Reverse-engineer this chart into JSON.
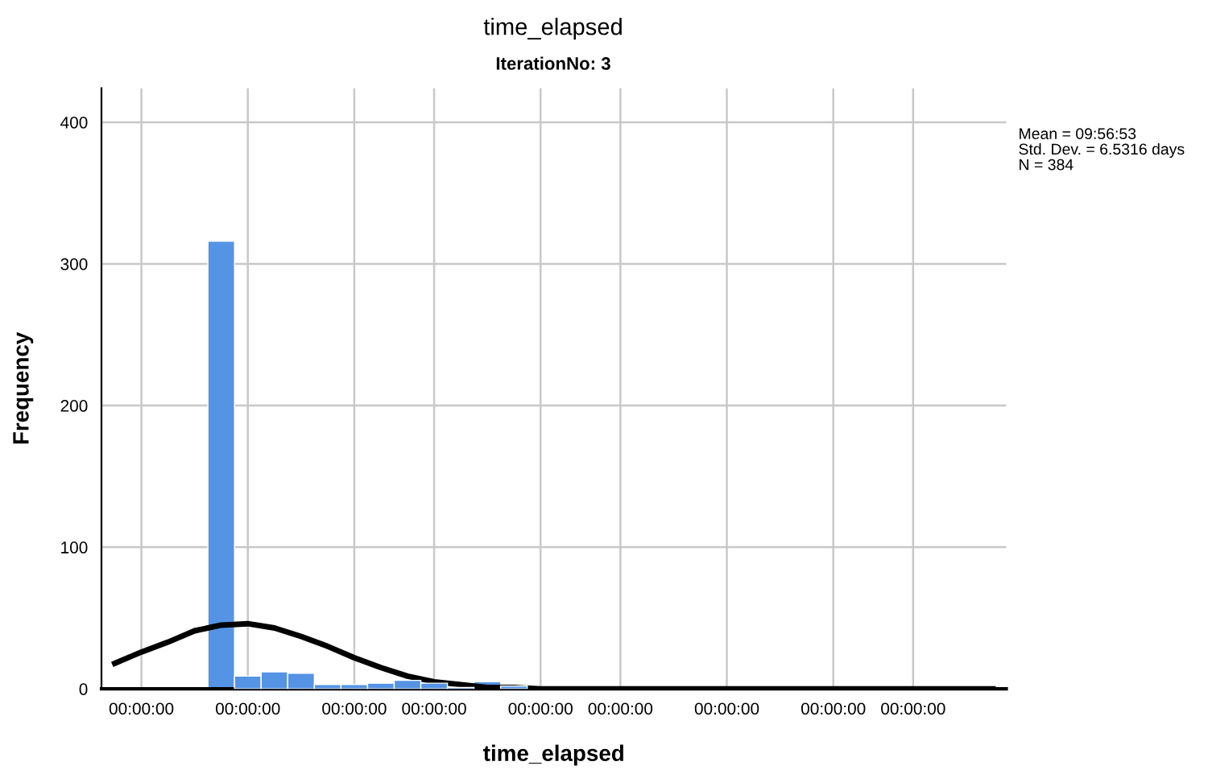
{
  "chart_data": {
    "type": "bar",
    "title": "time_elapsed",
    "subtitle": "IterationNo: 3",
    "xlabel": "time_elapsed",
    "ylabel": "Frequency",
    "categories": [
      null,
      "00:00:00",
      null,
      null,
      null,
      "00:00:00",
      null,
      null,
      null,
      "00:00:00",
      null,
      null,
      "00:00:00",
      null,
      null,
      null,
      "00:00:00",
      null,
      null,
      "00:00:00",
      null,
      null,
      null,
      "00:00:00",
      null,
      null,
      null,
      "00:00:00",
      null,
      null,
      "00:00:00",
      null,
      null,
      null
    ],
    "values": [
      null,
      null,
      null,
      null,
      316,
      9,
      12,
      11,
      3,
      3,
      4,
      6,
      4,
      1,
      5,
      2,
      null,
      null,
      null,
      null,
      1,
      null,
      null,
      null,
      null,
      null,
      null,
      null,
      null,
      null,
      null,
      null,
      null,
      null
    ],
    "color": "#5593e4",
    "series": [
      {
        "type": "line",
        "color": "#000000",
        "values": [
          18,
          26,
          33,
          41,
          45,
          46,
          43,
          37,
          30,
          22,
          15,
          9,
          5,
          3,
          1,
          1,
          0,
          0,
          0,
          0,
          0,
          0,
          0,
          0,
          0,
          0,
          0,
          0,
          0,
          0,
          0,
          0,
          0,
          0
        ]
      }
    ],
    "ylim": [
      0,
      424
    ],
    "yticks": [
      0,
      100,
      200,
      300,
      400
    ],
    "grid": true,
    "legend": false,
    "annotations": [
      "Mean = 09:56:53",
      "Std. Dev. = 6.5316 days",
      "N = 384"
    ]
  }
}
